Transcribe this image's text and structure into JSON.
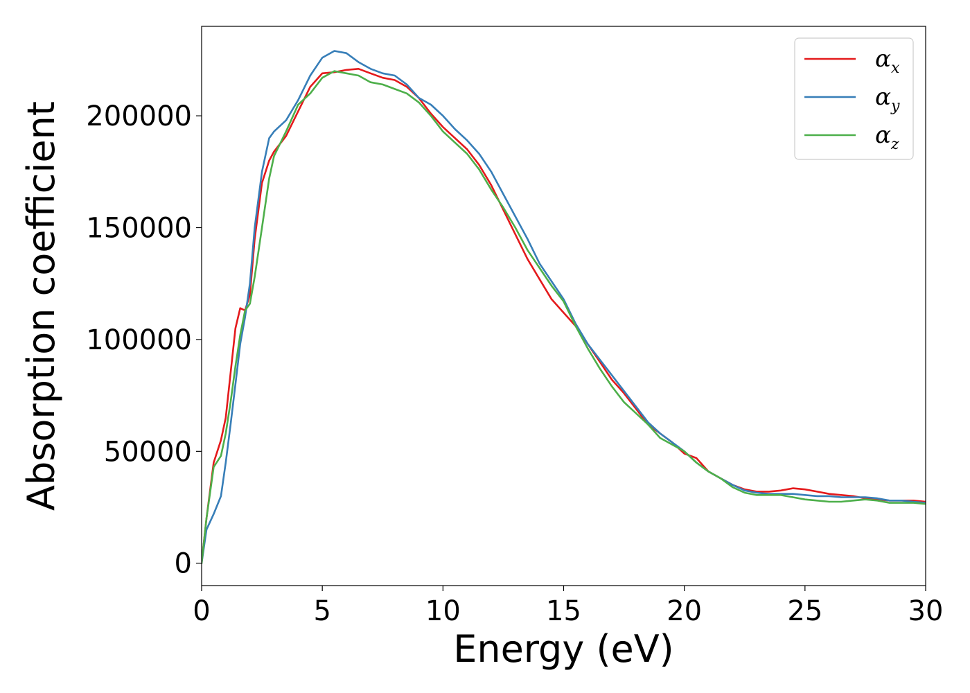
{
  "chart_data": {
    "type": "line",
    "title": "",
    "xlabel": "Energy (eV)",
    "ylabel": "Absorption coefficient",
    "xlim": [
      0,
      30
    ],
    "ylim": [
      -10000,
      240000
    ],
    "xticks": [
      0,
      5,
      10,
      15,
      20,
      25,
      30
    ],
    "xtick_labels": [
      "0",
      "5",
      "10",
      "15",
      "20",
      "25",
      "30"
    ],
    "yticks": [
      0,
      50000,
      100000,
      150000,
      200000
    ],
    "ytick_labels": [
      "0",
      "50000",
      "100000",
      "150000",
      "200000"
    ],
    "grid": false,
    "legend_position": "top-right",
    "series": [
      {
        "name": "α_x",
        "legend_symbol": "α",
        "legend_subscript": "x",
        "color": "#e41a1c",
        "points": [
          [
            0,
            0
          ],
          [
            0.2,
            20000
          ],
          [
            0.5,
            45000
          ],
          [
            0.8,
            55000
          ],
          [
            1.0,
            65000
          ],
          [
            1.2,
            85000
          ],
          [
            1.4,
            105000
          ],
          [
            1.6,
            114000
          ],
          [
            1.8,
            113000
          ],
          [
            2.0,
            120000
          ],
          [
            2.2,
            145000
          ],
          [
            2.5,
            170000
          ],
          [
            2.8,
            180000
          ],
          [
            3.0,
            184000
          ],
          [
            3.5,
            191000
          ],
          [
            4.0,
            202000
          ],
          [
            4.5,
            213000
          ],
          [
            5.0,
            219000
          ],
          [
            5.5,
            219500
          ],
          [
            6.0,
            220500
          ],
          [
            6.5,
            221000
          ],
          [
            7.0,
            219000
          ],
          [
            7.5,
            217000
          ],
          [
            8.0,
            216000
          ],
          [
            8.5,
            213000
          ],
          [
            9.0,
            208000
          ],
          [
            9.5,
            201000
          ],
          [
            10,
            195000
          ],
          [
            10.5,
            190000
          ],
          [
            11,
            185000
          ],
          [
            11.5,
            178000
          ],
          [
            12,
            169000
          ],
          [
            12.5,
            158000
          ],
          [
            13,
            147000
          ],
          [
            13.5,
            136000
          ],
          [
            14,
            127000
          ],
          [
            14.5,
            118000
          ],
          [
            15,
            112000
          ],
          [
            15.5,
            106000
          ],
          [
            16,
            98000
          ],
          [
            16.5,
            90000
          ],
          [
            17,
            82000
          ],
          [
            17.5,
            76000
          ],
          [
            18,
            69000
          ],
          [
            18.5,
            62000
          ],
          [
            19,
            58000
          ],
          [
            19.5,
            54000
          ],
          [
            20,
            49000
          ],
          [
            20.5,
            47000
          ],
          [
            21,
            41000
          ],
          [
            21.5,
            38000
          ],
          [
            22,
            35000
          ],
          [
            22.5,
            33000
          ],
          [
            23,
            32000
          ],
          [
            23.5,
            32000
          ],
          [
            24,
            32500
          ],
          [
            24.5,
            33500
          ],
          [
            25,
            33000
          ],
          [
            25.5,
            32000
          ],
          [
            26,
            31000
          ],
          [
            26.5,
            30500
          ],
          [
            27,
            30000
          ],
          [
            27.5,
            29000
          ],
          [
            28,
            28500
          ],
          [
            28.5,
            28000
          ],
          [
            29,
            28000
          ],
          [
            29.5,
            28000
          ],
          [
            30,
            27500
          ]
        ]
      },
      {
        "name": "α_y",
        "legend_symbol": "α",
        "legend_subscript": "y",
        "color": "#377eb8",
        "points": [
          [
            0,
            0
          ],
          [
            0.2,
            15000
          ],
          [
            0.5,
            22000
          ],
          [
            0.8,
            30000
          ],
          [
            1.0,
            45000
          ],
          [
            1.2,
            62000
          ],
          [
            1.4,
            80000
          ],
          [
            1.6,
            98000
          ],
          [
            1.8,
            110000
          ],
          [
            2.0,
            125000
          ],
          [
            2.2,
            150000
          ],
          [
            2.5,
            175000
          ],
          [
            2.8,
            190000
          ],
          [
            3.0,
            193000
          ],
          [
            3.5,
            198000
          ],
          [
            4.0,
            207000
          ],
          [
            4.5,
            218000
          ],
          [
            5.0,
            226000
          ],
          [
            5.5,
            229000
          ],
          [
            6.0,
            228000
          ],
          [
            6.5,
            224000
          ],
          [
            7.0,
            221000
          ],
          [
            7.5,
            219000
          ],
          [
            8.0,
            218000
          ],
          [
            8.5,
            214000
          ],
          [
            9.0,
            208000
          ],
          [
            9.5,
            205000
          ],
          [
            10,
            200000
          ],
          [
            10.5,
            194000
          ],
          [
            11,
            189000
          ],
          [
            11.5,
            183000
          ],
          [
            12,
            175000
          ],
          [
            12.5,
            165000
          ],
          [
            13,
            155000
          ],
          [
            13.5,
            145000
          ],
          [
            14,
            134000
          ],
          [
            14.5,
            126000
          ],
          [
            15,
            118000
          ],
          [
            15.5,
            107000
          ],
          [
            16,
            98000
          ],
          [
            16.5,
            91000
          ],
          [
            17,
            84000
          ],
          [
            17.5,
            77000
          ],
          [
            18,
            70000
          ],
          [
            18.5,
            63000
          ],
          [
            19,
            58000
          ],
          [
            19.5,
            54000
          ],
          [
            20,
            50000
          ],
          [
            20.5,
            45000
          ],
          [
            21,
            41000
          ],
          [
            21.5,
            38000
          ],
          [
            22,
            35000
          ],
          [
            22.5,
            32500
          ],
          [
            23,
            31500
          ],
          [
            23.5,
            31000
          ],
          [
            24,
            31000
          ],
          [
            24.5,
            31000
          ],
          [
            25,
            30500
          ],
          [
            25.5,
            30000
          ],
          [
            26,
            30000
          ],
          [
            26.5,
            29500
          ],
          [
            27,
            29500
          ],
          [
            27.5,
            29500
          ],
          [
            28,
            29000
          ],
          [
            28.5,
            28000
          ],
          [
            29,
            28000
          ],
          [
            29.5,
            27500
          ],
          [
            30,
            27000
          ]
        ]
      },
      {
        "name": "α_z",
        "legend_symbol": "α",
        "legend_subscript": "z",
        "color": "#4daf4a",
        "points": [
          [
            0,
            0
          ],
          [
            0.2,
            20000
          ],
          [
            0.5,
            43000
          ],
          [
            0.8,
            48000
          ],
          [
            1.0,
            58000
          ],
          [
            1.2,
            72000
          ],
          [
            1.4,
            88000
          ],
          [
            1.6,
            102000
          ],
          [
            1.8,
            113000
          ],
          [
            2.0,
            116000
          ],
          [
            2.2,
            128000
          ],
          [
            2.5,
            150000
          ],
          [
            2.8,
            172000
          ],
          [
            3.0,
            182000
          ],
          [
            3.5,
            193000
          ],
          [
            4.0,
            205000
          ],
          [
            4.5,
            210000
          ],
          [
            5.0,
            217000
          ],
          [
            5.5,
            220000
          ],
          [
            6.0,
            219000
          ],
          [
            6.5,
            218000
          ],
          [
            7.0,
            215000
          ],
          [
            7.5,
            214000
          ],
          [
            8.0,
            212000
          ],
          [
            8.5,
            210000
          ],
          [
            9.0,
            206000
          ],
          [
            9.5,
            200000
          ],
          [
            10,
            193000
          ],
          [
            10.5,
            188000
          ],
          [
            11,
            183000
          ],
          [
            11.5,
            176000
          ],
          [
            12,
            167000
          ],
          [
            12.5,
            159000
          ],
          [
            13,
            150000
          ],
          [
            13.5,
            140000
          ],
          [
            14,
            132000
          ],
          [
            14.5,
            124000
          ],
          [
            15,
            117000
          ],
          [
            15.5,
            106000
          ],
          [
            16,
            96000
          ],
          [
            16.5,
            87000
          ],
          [
            17,
            79000
          ],
          [
            17.5,
            72000
          ],
          [
            18,
            67000
          ],
          [
            18.5,
            62000
          ],
          [
            19,
            56000
          ],
          [
            19.5,
            53000
          ],
          [
            20,
            50000
          ],
          [
            20.5,
            45000
          ],
          [
            21,
            41000
          ],
          [
            21.5,
            38000
          ],
          [
            22,
            34000
          ],
          [
            22.5,
            31500
          ],
          [
            23,
            30500
          ],
          [
            23.5,
            30500
          ],
          [
            24,
            30500
          ],
          [
            24.5,
            29500
          ],
          [
            25,
            28500
          ],
          [
            25.5,
            28000
          ],
          [
            26,
            27500
          ],
          [
            26.5,
            27500
          ],
          [
            27,
            28000
          ],
          [
            27.5,
            28500
          ],
          [
            28,
            28000
          ],
          [
            28.5,
            27000
          ],
          [
            29,
            27000
          ],
          [
            29.5,
            27000
          ],
          [
            30,
            26500
          ]
        ]
      }
    ]
  }
}
